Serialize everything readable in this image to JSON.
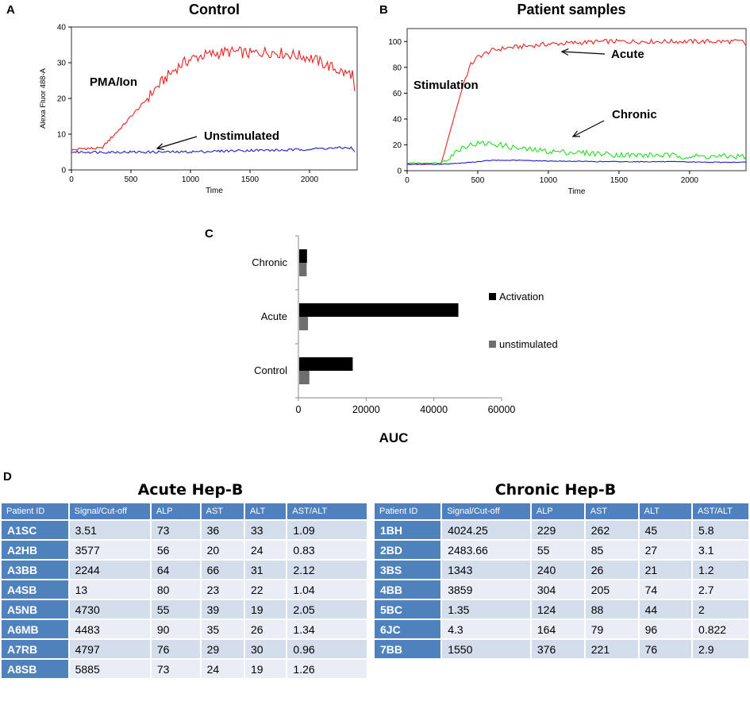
{
  "panels": {
    "a": {
      "letter": "A",
      "title": "Control"
    },
    "b": {
      "letter": "B",
      "title": "Patient samples"
    },
    "c": {
      "letter": "C"
    },
    "d": {
      "letter": "D"
    }
  },
  "chart_data": [
    {
      "type": "line",
      "id": "A",
      "title": "Control",
      "xlabel": "Time",
      "ylabel": "Alexa Fluor 488-A",
      "xlim": [
        0,
        2400
      ],
      "ylim": [
        0,
        40
      ],
      "xticks": [
        0,
        500,
        1000,
        1500,
        2000
      ],
      "yticks": [
        0,
        10,
        20,
        30,
        40
      ],
      "annotations": [
        "PMA/Ion",
        "Unstimulated"
      ],
      "series": [
        {
          "name": "PMA/Ion",
          "color": "#e8231f",
          "x": [
            0,
            100,
            250,
            450,
            500,
            600,
            700,
            800,
            900,
            1000,
            1100,
            1200,
            1300,
            1400,
            1500,
            1600,
            1700,
            1800,
            1900,
            2000,
            2100,
            2200,
            2300,
            2360,
            2380
          ],
          "y": [
            5.5,
            6,
            6,
            13,
            15,
            18.5,
            22.5,
            26,
            29,
            31,
            32,
            32.5,
            33,
            33,
            32.5,
            33,
            33,
            32.5,
            32,
            31.5,
            30,
            28.5,
            27,
            27,
            22
          ]
        },
        {
          "name": "Unstimulated",
          "color": "#1f1fcc",
          "x": [
            0,
            300,
            600,
            900,
            1200,
            1500,
            1800,
            2100,
            2350,
            2380
          ],
          "y": [
            5,
            5,
            5,
            5,
            5.2,
            5.5,
            5.5,
            6,
            6.2,
            5
          ]
        }
      ]
    },
    {
      "type": "line",
      "id": "B",
      "title": "Patient samples",
      "xlabel": "Time",
      "ylabel": "",
      "xlim": [
        0,
        2400
      ],
      "ylim": [
        0,
        110
      ],
      "xticks": [
        0,
        500,
        1000,
        1500,
        2000
      ],
      "yticks": [
        0,
        20,
        40,
        60,
        80,
        100
      ],
      "annotations": [
        "Stimulation",
        "Acute",
        "Chronic"
      ],
      "series": [
        {
          "name": "Acute",
          "color": "#e8231f",
          "x": [
            0,
            240,
            400,
            450,
            500,
            600,
            700,
            800,
            900,
            1000,
            1200,
            1400,
            1600,
            1800,
            2000,
            2200,
            2380,
            2400
          ],
          "y": [
            5,
            5,
            68,
            82,
            88,
            93,
            95,
            96,
            97,
            98,
            99,
            100,
            100,
            100,
            100,
            100,
            100,
            97
          ]
        },
        {
          "name": "Chronic",
          "color": "#22dd22",
          "x": [
            0,
            240,
            400,
            500,
            600,
            700,
            800,
            1000,
            1200,
            1400,
            1600,
            1800,
            2000,
            2200,
            2400
          ],
          "y": [
            6,
            6,
            19,
            21,
            21,
            19,
            17,
            15,
            14,
            13,
            12,
            12,
            11,
            11,
            11
          ]
        },
        {
          "name": "Unstimulated",
          "color": "#1f1fcc",
          "x": [
            0,
            240,
            400,
            500,
            600,
            800,
            1000,
            1400,
            1800,
            2200,
            2400
          ],
          "y": [
            5,
            5,
            6,
            7,
            8,
            8,
            7.5,
            7,
            7,
            6.5,
            6.5
          ]
        }
      ]
    },
    {
      "type": "bar",
      "id": "C",
      "orientation": "horizontal",
      "categories": [
        "Chronic",
        "Acute",
        "Control"
      ],
      "series": [
        {
          "name": "Activation",
          "color": "#000000",
          "values": [
            2300,
            47000,
            15800
          ]
        },
        {
          "name": "unstimulated",
          "color": "#6e6e6e",
          "values": [
            2200,
            2600,
            3000
          ]
        }
      ],
      "xlabel": "AUC",
      "xlim": [
        0,
        60000
      ],
      "xticks": [
        0,
        20000,
        40000,
        60000
      ],
      "legend": "right"
    }
  ],
  "tables": {
    "acute": {
      "title": "Acute Hep-B",
      "headers": [
        "Patient ID",
        "Signal/Cut-off",
        "ALP",
        "AST",
        "ALT",
        "AST/ALT"
      ],
      "rows": [
        [
          "A1SC",
          "3.51",
          "73",
          "36",
          "33",
          "1.09"
        ],
        [
          "A2HB",
          "3577",
          "56",
          "20",
          "24",
          "0.83"
        ],
        [
          "A3BB",
          "2244",
          "64",
          "66",
          "31",
          "2.12"
        ],
        [
          "A4SB",
          "13",
          "80",
          "23",
          "22",
          "1.04"
        ],
        [
          "A5NB",
          "4730",
          "55",
          "39",
          "19",
          "2.05"
        ],
        [
          "A6MB",
          "4483",
          "90",
          "35",
          "26",
          "1.34"
        ],
        [
          "A7RB",
          "4797",
          "76",
          "29",
          "30",
          "0.96"
        ],
        [
          "A8SB",
          "5885",
          "73",
          "24",
          "19",
          "1.26"
        ]
      ]
    },
    "chronic": {
      "title": "Chronic Hep-B",
      "headers": [
        "Patient ID",
        "Signal/Cut-off",
        "ALP",
        "AST",
        "ALT",
        "AST/ALT"
      ],
      "rows": [
        [
          "1BH",
          "4024.25",
          "229",
          "262",
          "45",
          "5.8"
        ],
        [
          "2BD",
          "2483.66",
          "55",
          "85",
          "27",
          "3.1"
        ],
        [
          "3BS",
          "1343",
          "240",
          "26",
          "21",
          "1.2"
        ],
        [
          "4BB",
          "3859",
          "304",
          "205",
          "74",
          "2.7"
        ],
        [
          "5BC",
          "1.35",
          "124",
          "88",
          "44",
          "2"
        ],
        [
          "6JC",
          "4.3",
          "164",
          "79",
          "96",
          "0.822"
        ],
        [
          "7BB",
          "1550",
          "376",
          "221",
          "76",
          "2.9"
        ]
      ]
    }
  }
}
